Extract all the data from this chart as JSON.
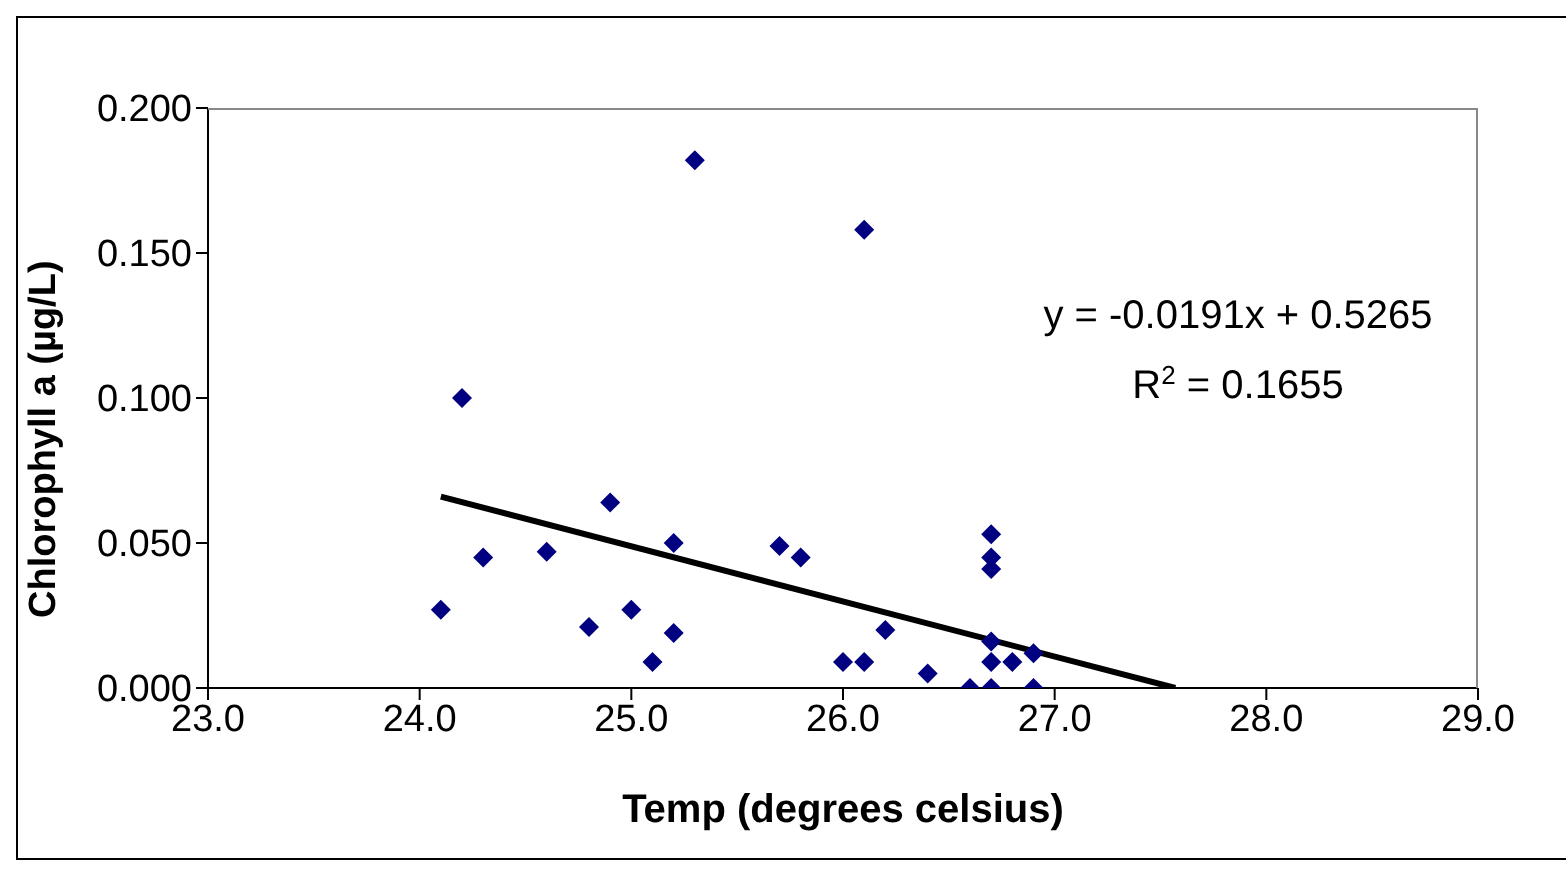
{
  "chart_data": {
    "type": "scatter",
    "xlabel": "Temp (degrees celsius)",
    "ylabel": "Chlorophyll a (µg/L)",
    "xlim": [
      23,
      29
    ],
    "xticks": [
      {
        "value": 23,
        "label": "23.0"
      },
      {
        "value": 24,
        "label": "24.0"
      },
      {
        "value": 25,
        "label": "25.0"
      },
      {
        "value": 26,
        "label": "26.0"
      },
      {
        "value": 27,
        "label": "27.0"
      },
      {
        "value": 28,
        "label": "28.0"
      },
      {
        "value": 29,
        "label": "29.0"
      }
    ],
    "ylim": [
      0,
      0.2
    ],
    "yticks": [
      {
        "value": 0,
        "label": "0.000"
      },
      {
        "value": 0.05,
        "label": "0.050"
      },
      {
        "value": 0.1,
        "label": "0.100"
      },
      {
        "value": 0.15,
        "label": "0.150"
      },
      {
        "value": 0.2,
        "label": "0.200"
      }
    ],
    "series": [
      {
        "marker": "diamond",
        "color": "#000080",
        "x": [
          24.1,
          24.2,
          24.3,
          24.6,
          24.8,
          24.9,
          25.0,
          25.1,
          25.2,
          25.2,
          25.3,
          25.7,
          25.8,
          26.0,
          26.1,
          26.1,
          26.2,
          26.4,
          26.6,
          26.7,
          26.7,
          26.7,
          26.7,
          26.7,
          26.7,
          26.8,
          26.9,
          26.9
        ],
        "values": [
          0.027,
          0.1,
          0.045,
          0.047,
          0.021,
          0.064,
          0.027,
          0.009,
          0.019,
          0.05,
          0.182,
          0.049,
          0.045,
          0.009,
          0.009,
          0.158,
          0.02,
          0.005,
          0,
          0,
          0.009,
          0.016,
          0.041,
          0.045,
          0.053,
          0.009,
          0.012,
          0
        ]
      },
      {
        "type": "line",
        "marker": "none",
        "color": "#000000",
        "x": [
          24.1,
          27.57
        ],
        "values": [
          0.066,
          0
        ]
      }
    ],
    "annotations": [
      "y = -0.0191x + 0.5265",
      "R$^{2}$ = 0.1655"
    ]
  }
}
